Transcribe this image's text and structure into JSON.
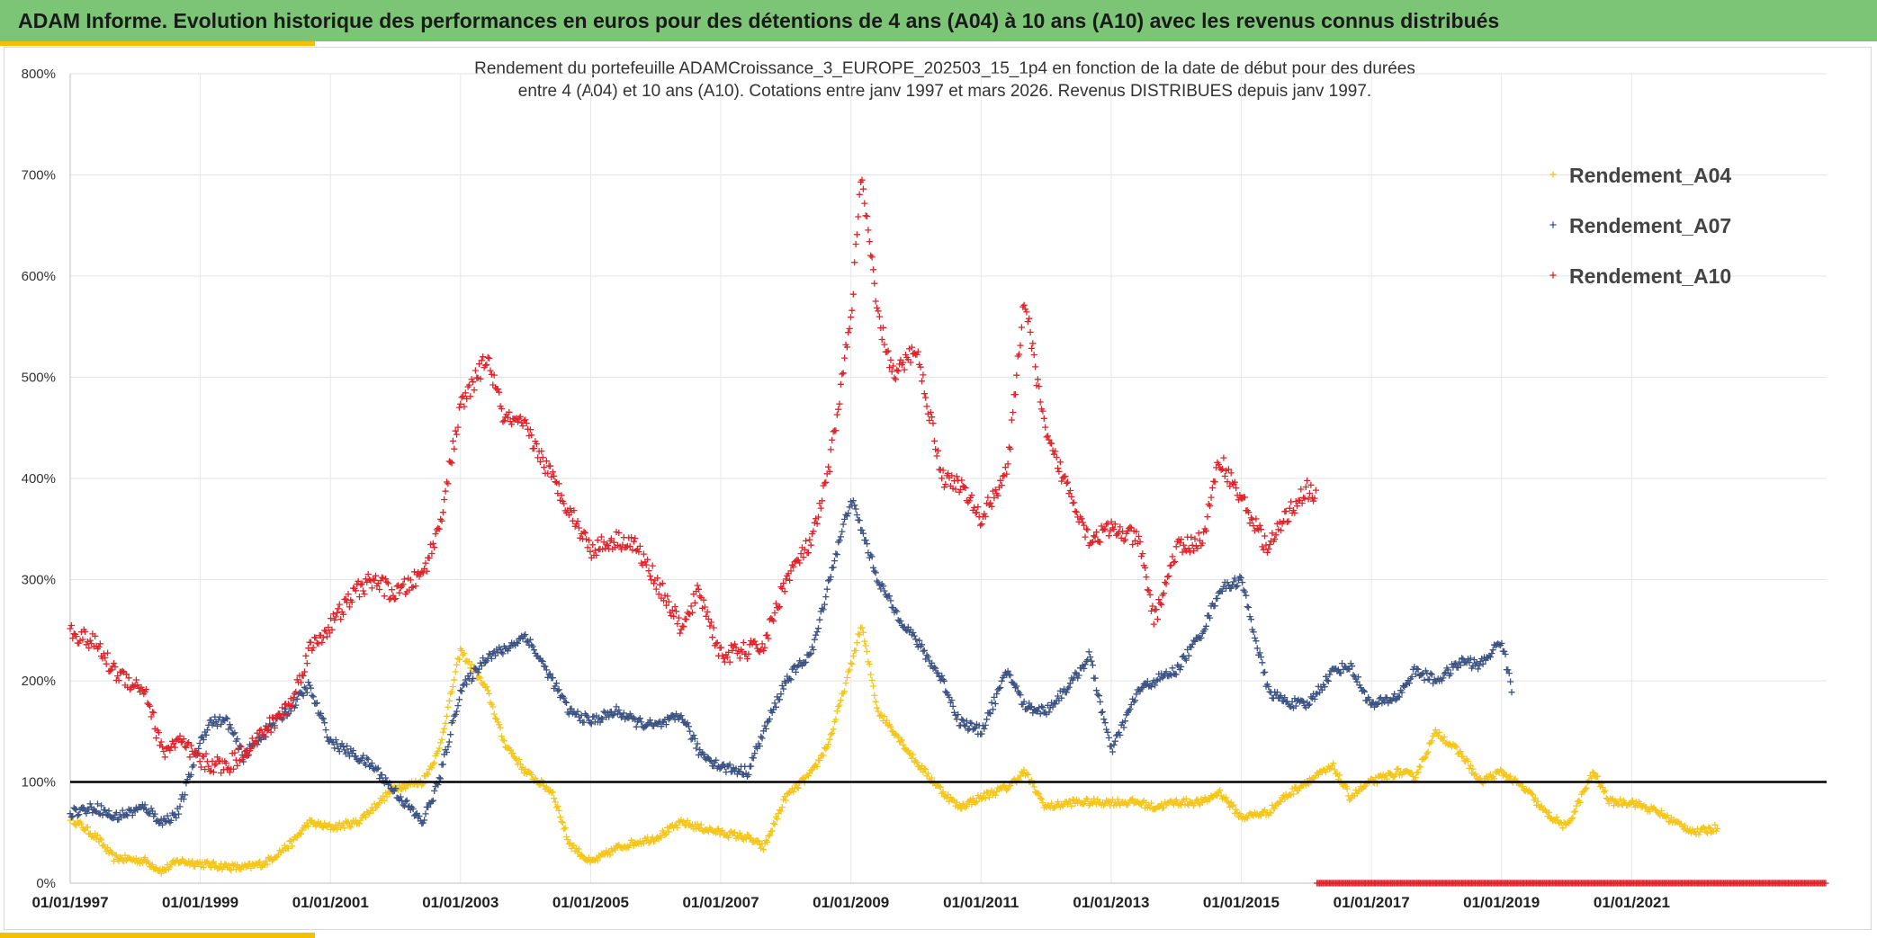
{
  "banner": {
    "title": "ADAM Informe. Evolution historique des performances en euros pour des détentions de 4 ans (A04) à 10 ans (A10) avec les revenus connus distribués"
  },
  "colors": {
    "banner": "#7cc576",
    "accent": "#f5c000",
    "a04": "#f5c518",
    "a07": "#3b5282",
    "a10": "#e0232a",
    "reference": "#000000"
  },
  "chart_data": {
    "type": "scatter",
    "title_lines": [
      "Rendement du portefeuille ADAMCroissance_3_EUROPE_202503_15_1p4  en fonction de la date de début pour des durées",
      "entre 4 (A04) et 10 ans (A10). Cotations entre janv 1997 et mars 2026. Revenus DISTRIBUES depuis janv 1997."
    ],
    "x_axis": {
      "type": "date",
      "min": "1997-01-01",
      "max": "2023-12-31",
      "tick_labels": [
        "01/01/1997",
        "01/01/1999",
        "01/01/2001",
        "01/01/2003",
        "01/01/2005",
        "01/01/2007",
        "01/01/2009",
        "01/01/2011",
        "01/01/2013",
        "01/01/2015",
        "01/01/2017",
        "01/01/2019",
        "01/01/2021"
      ]
    },
    "y_axis": {
      "min": 0,
      "max": 800,
      "unit": "%",
      "tick_labels": [
        "0%",
        "100%",
        "200%",
        "300%",
        "400%",
        "500%",
        "600%",
        "700%",
        "800%"
      ]
    },
    "grid": true,
    "legend_position": "top-right",
    "reference_line": {
      "y": 100
    },
    "marker": "+",
    "series": [
      {
        "name": "Rendement_A04",
        "color": "#f5c518",
        "end": "2022-05-01",
        "points": [
          [
            "1997-01",
            65
          ],
          [
            "1997-06",
            45
          ],
          [
            "1997-09",
            25
          ],
          [
            "1998-03",
            22
          ],
          [
            "1998-06",
            12
          ],
          [
            "1998-09",
            22
          ],
          [
            "1999-03",
            18
          ],
          [
            "1999-09",
            15
          ],
          [
            "2000-01",
            20
          ],
          [
            "2000-06",
            40
          ],
          [
            "2000-09",
            60
          ],
          [
            "2001-01",
            55
          ],
          [
            "2001-06",
            60
          ],
          [
            "2001-09",
            75
          ],
          [
            "2002-01",
            95
          ],
          [
            "2002-06",
            100
          ],
          [
            "2002-09",
            130
          ],
          [
            "2003-01",
            230
          ],
          [
            "2003-06",
            190
          ],
          [
            "2003-09",
            140
          ],
          [
            "2004-01",
            110
          ],
          [
            "2004-06",
            90
          ],
          [
            "2004-09",
            40
          ],
          [
            "2005-01",
            20
          ],
          [
            "2005-06",
            35
          ],
          [
            "2005-09",
            40
          ],
          [
            "2006-01",
            45
          ],
          [
            "2006-06",
            60
          ],
          [
            "2006-09",
            55
          ],
          [
            "2007-01",
            50
          ],
          [
            "2007-06",
            45
          ],
          [
            "2007-09",
            35
          ],
          [
            "2008-01",
            85
          ],
          [
            "2008-06",
            110
          ],
          [
            "2008-09",
            140
          ],
          [
            "2009-01",
            215
          ],
          [
            "2009-03",
            255
          ],
          [
            "2009-06",
            170
          ],
          [
            "2009-09",
            150
          ],
          [
            "2010-01",
            120
          ],
          [
            "2010-06",
            90
          ],
          [
            "2010-09",
            75
          ],
          [
            "2011-01",
            85
          ],
          [
            "2011-06",
            95
          ],
          [
            "2011-09",
            110
          ],
          [
            "2012-01",
            75
          ],
          [
            "2012-06",
            80
          ],
          [
            "2012-09",
            80
          ],
          [
            "2013-01",
            80
          ],
          [
            "2013-06",
            80
          ],
          [
            "2013-09",
            75
          ],
          [
            "2014-01",
            80
          ],
          [
            "2014-06",
            80
          ],
          [
            "2014-09",
            90
          ],
          [
            "2015-01",
            65
          ],
          [
            "2015-06",
            70
          ],
          [
            "2015-09",
            85
          ],
          [
            "2016-01",
            100
          ],
          [
            "2016-06",
            115
          ],
          [
            "2016-09",
            85
          ],
          [
            "2017-01",
            100
          ],
          [
            "2017-06",
            110
          ],
          [
            "2017-09",
            105
          ],
          [
            "2018-01",
            150
          ],
          [
            "2018-06",
            125
          ],
          [
            "2018-09",
            100
          ],
          [
            "2019-01",
            110
          ],
          [
            "2019-06",
            90
          ],
          [
            "2019-09",
            70
          ],
          [
            "2020-01",
            55
          ],
          [
            "2020-06",
            110
          ],
          [
            "2020-09",
            80
          ],
          [
            "2021-01",
            80
          ],
          [
            "2021-06",
            70
          ],
          [
            "2021-09",
            60
          ],
          [
            "2022-01",
            50
          ],
          [
            "2022-05",
            55
          ]
        ]
      },
      {
        "name": "Rendement_A07",
        "color": "#3b5282",
        "end": "2019-03-01",
        "points": [
          [
            "1997-01",
            70
          ],
          [
            "1997-06",
            75
          ],
          [
            "1997-09",
            65
          ],
          [
            "1998-03",
            75
          ],
          [
            "1998-06",
            60
          ],
          [
            "1998-09",
            70
          ],
          [
            "1999-01",
            140
          ],
          [
            "1999-03",
            160
          ],
          [
            "1999-06",
            160
          ],
          [
            "1999-09",
            125
          ],
          [
            "2000-01",
            150
          ],
          [
            "2000-06",
            175
          ],
          [
            "2000-09",
            195
          ],
          [
            "2001-01",
            140
          ],
          [
            "2001-06",
            125
          ],
          [
            "2001-09",
            115
          ],
          [
            "2002-01",
            90
          ],
          [
            "2002-06",
            60
          ],
          [
            "2002-09",
            100
          ],
          [
            "2003-01",
            190
          ],
          [
            "2003-06",
            225
          ],
          [
            "2003-09",
            230
          ],
          [
            "2004-01",
            245
          ],
          [
            "2004-06",
            200
          ],
          [
            "2004-09",
            170
          ],
          [
            "2005-01",
            160
          ],
          [
            "2005-06",
            170
          ],
          [
            "2005-09",
            160
          ],
          [
            "2006-01",
            155
          ],
          [
            "2006-06",
            165
          ],
          [
            "2006-09",
            130
          ],
          [
            "2007-01",
            115
          ],
          [
            "2007-06",
            110
          ],
          [
            "2007-09",
            150
          ],
          [
            "2008-01",
            200
          ],
          [
            "2008-06",
            230
          ],
          [
            "2008-09",
            300
          ],
          [
            "2009-01",
            380
          ],
          [
            "2009-03",
            350
          ],
          [
            "2009-06",
            300
          ],
          [
            "2009-09",
            270
          ],
          [
            "2010-01",
            240
          ],
          [
            "2010-06",
            200
          ],
          [
            "2010-09",
            160
          ],
          [
            "2011-01",
            150
          ],
          [
            "2011-06",
            210
          ],
          [
            "2011-09",
            175
          ],
          [
            "2012-01",
            170
          ],
          [
            "2012-06",
            200
          ],
          [
            "2012-09",
            225
          ],
          [
            "2013-01",
            130
          ],
          [
            "2013-06",
            190
          ],
          [
            "2013-09",
            200
          ],
          [
            "2014-01",
            210
          ],
          [
            "2014-06",
            250
          ],
          [
            "2014-09",
            290
          ],
          [
            "2015-01",
            300
          ],
          [
            "2015-06",
            190
          ],
          [
            "2015-09",
            180
          ],
          [
            "2016-01",
            175
          ],
          [
            "2016-06",
            210
          ],
          [
            "2016-09",
            215
          ],
          [
            "2017-01",
            175
          ],
          [
            "2017-06",
            185
          ],
          [
            "2017-09",
            210
          ],
          [
            "2018-01",
            200
          ],
          [
            "2018-06",
            220
          ],
          [
            "2018-09",
            215
          ],
          [
            "2019-01",
            240
          ],
          [
            "2019-03",
            190
          ]
        ]
      },
      {
        "name": "Rendement_A10",
        "color": "#e0232a",
        "end": "2016-03-01",
        "points": [
          [
            "1997-01",
            250
          ],
          [
            "1997-06",
            235
          ],
          [
            "1997-09",
            210
          ],
          [
            "1998-03",
            190
          ],
          [
            "1998-06",
            130
          ],
          [
            "1998-09",
            140
          ],
          [
            "1999-01",
            120
          ],
          [
            "1999-06",
            115
          ],
          [
            "1999-09",
            130
          ],
          [
            "2000-01",
            150
          ],
          [
            "2000-06",
            180
          ],
          [
            "2000-09",
            230
          ],
          [
            "2001-01",
            255
          ],
          [
            "2001-06",
            290
          ],
          [
            "2001-09",
            300
          ],
          [
            "2002-01",
            285
          ],
          [
            "2002-06",
            305
          ],
          [
            "2002-09",
            350
          ],
          [
            "2003-01",
            470
          ],
          [
            "2003-06",
            520
          ],
          [
            "2003-09",
            460
          ],
          [
            "2004-01",
            450
          ],
          [
            "2004-06",
            400
          ],
          [
            "2004-09",
            370
          ],
          [
            "2005-01",
            330
          ],
          [
            "2005-06",
            340
          ],
          [
            "2005-09",
            335
          ],
          [
            "2006-01",
            300
          ],
          [
            "2006-06",
            250
          ],
          [
            "2006-09",
            290
          ],
          [
            "2007-01",
            225
          ],
          [
            "2007-06",
            230
          ],
          [
            "2007-09",
            235
          ],
          [
            "2008-01",
            300
          ],
          [
            "2008-06",
            340
          ],
          [
            "2008-09",
            410
          ],
          [
            "2009-01",
            560
          ],
          [
            "2009-03",
            700
          ],
          [
            "2009-06",
            560
          ],
          [
            "2009-09",
            500
          ],
          [
            "2010-01",
            530
          ],
          [
            "2010-06",
            400
          ],
          [
            "2010-09",
            395
          ],
          [
            "2011-01",
            360
          ],
          [
            "2011-06",
            410
          ],
          [
            "2011-09",
            580
          ],
          [
            "2012-01",
            440
          ],
          [
            "2012-06",
            380
          ],
          [
            "2012-09",
            340
          ],
          [
            "2013-01",
            350
          ],
          [
            "2013-06",
            340
          ],
          [
            "2013-09",
            260
          ],
          [
            "2014-01",
            330
          ],
          [
            "2014-06",
            340
          ],
          [
            "2014-09",
            420
          ],
          [
            "2015-01",
            380
          ],
          [
            "2015-06",
            330
          ],
          [
            "2015-09",
            360
          ],
          [
            "2016-01",
            390
          ],
          [
            "2016-03",
            380
          ]
        ]
      }
    ]
  },
  "legend": [
    {
      "label": "Rendement_A04",
      "color": "#f5c518"
    },
    {
      "label": "Rendement_A07",
      "color": "#3b5282"
    },
    {
      "label": "Rendement_A10",
      "color": "#e0232a"
    }
  ]
}
